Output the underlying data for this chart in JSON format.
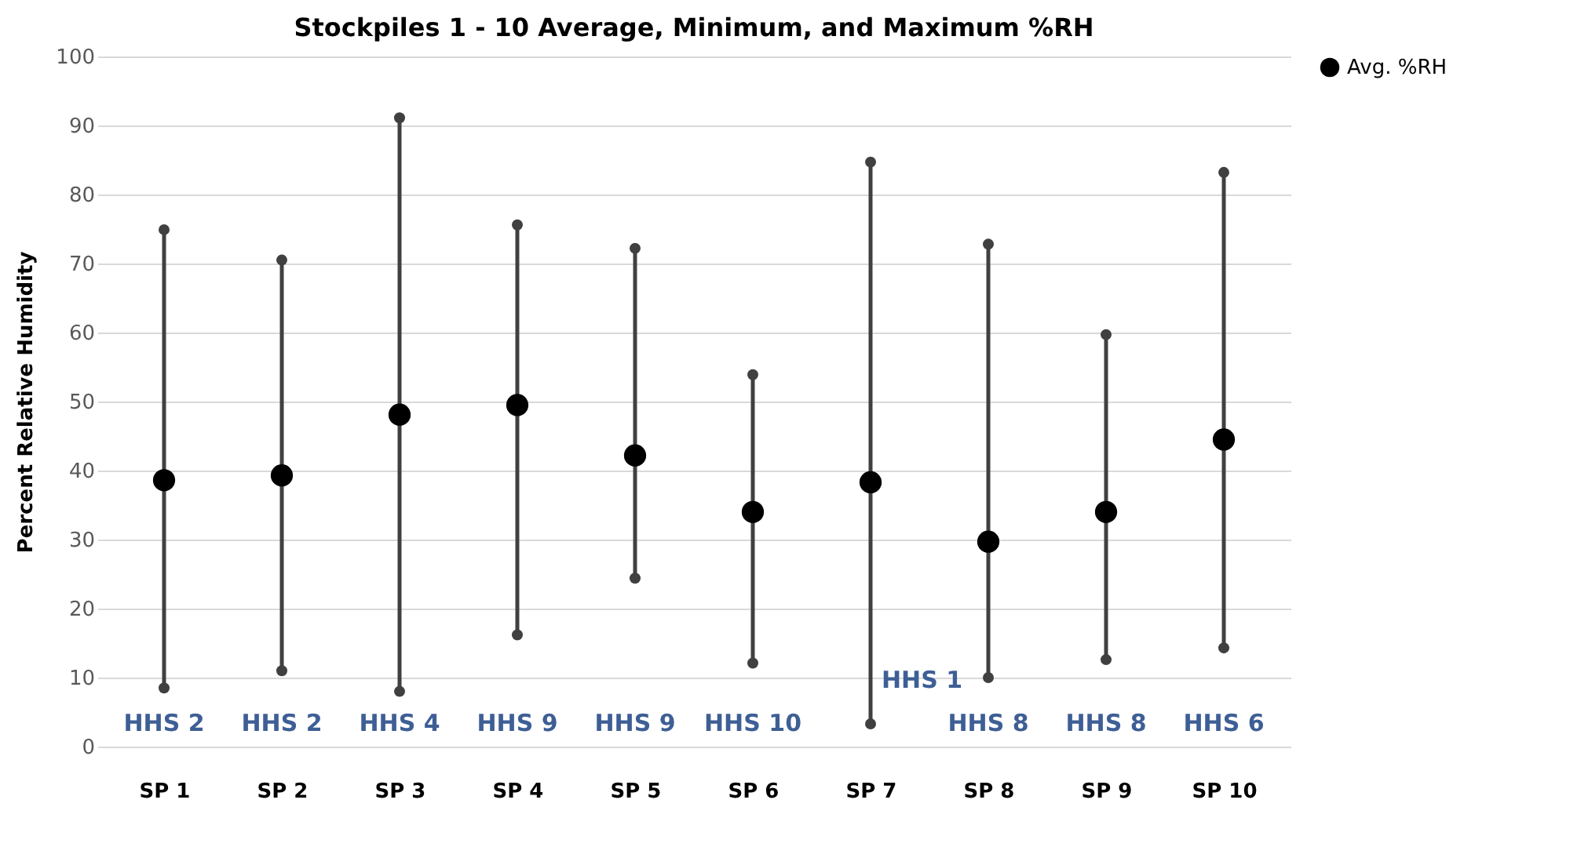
{
  "chart_data": {
    "type": "scatter",
    "title": "Stockpiles 1 - 10 Average, Minimum, and Maximum %RH",
    "ylabel": "Percent Relative Humidity",
    "categories": [
      "SP 1",
      "SP 2",
      "SP 3",
      "SP 4",
      "SP 5",
      "SP 6",
      "SP 7",
      "SP 8",
      "SP 9",
      "SP 10"
    ],
    "series": [
      {
        "name": "Avg. %RH",
        "color": "#000000",
        "values": [
          38.6,
          39.3,
          48.1,
          49.5,
          42.2,
          34.0,
          38.3,
          29.7,
          34.0,
          44.5
        ],
        "errors": [
          [
            8.5,
            74.9
          ],
          [
            11.0,
            70.5
          ],
          [
            8.0,
            91.1
          ],
          [
            16.2,
            75.6
          ],
          [
            24.4,
            72.2
          ],
          [
            12.1,
            53.9
          ],
          [
            3.3,
            84.7
          ],
          [
            10.0,
            72.8
          ],
          [
            12.6,
            59.7
          ],
          [
            14.3,
            83.2
          ]
        ]
      }
    ],
    "ylim": [
      0,
      100
    ],
    "yticks": [
      0,
      10,
      20,
      30,
      40,
      50,
      60,
      70,
      80,
      90,
      100
    ],
    "grid": "y",
    "legend": "right",
    "marker": "circle",
    "annotations": [
      "HHS 2",
      "HHS 2",
      "HHS 4",
      "HHS 9",
      "HHS 9",
      "HHS 10",
      "HHS 1",
      "HHS 8",
      "HHS 8",
      "HHS 6"
    ]
  }
}
